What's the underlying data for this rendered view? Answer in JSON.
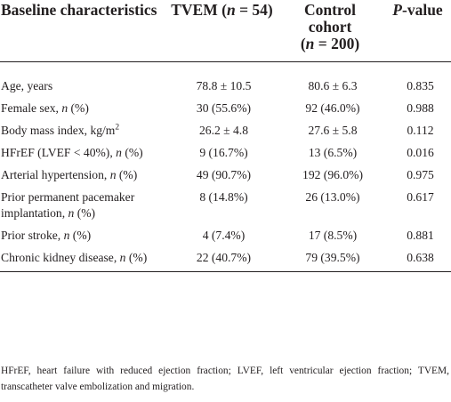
{
  "header": {
    "col1": "Baseline characteristics",
    "col2": "TVEM (n = 54)",
    "col3": "Control cohort (n = 200)",
    "col4": "P-value"
  },
  "rows": [
    {
      "label": "Age, years",
      "tvem": "78.8 ± 10.5",
      "control": "80.6 ± 6.3",
      "p": "0.835"
    },
    {
      "label": "Female sex, n (%)",
      "tvem": "30 (55.6%)",
      "control": "92 (46.0%)",
      "p": "0.988"
    },
    {
      "label": "Body mass index, kg/m2",
      "tvem": "26.2 ± 4.8",
      "control": "27.6 ± 5.8",
      "p": "0.112"
    },
    {
      "label": "HFrEF (LVEF < 40%), n (%)",
      "tvem": "9 (16.7%)",
      "control": "13 (6.5%)",
      "p": "0.016"
    },
    {
      "label": "Arterial hypertension, n (%)",
      "tvem": "49 (90.7%)",
      "control": "192 (96.0%)",
      "p": "0.975"
    },
    {
      "label": "Prior permanent pacemaker implantation, n (%)",
      "tvem": "8 (14.8%)",
      "control": "26 (13.0%)",
      "p": "0.617"
    },
    {
      "label": "Prior stroke, n (%)",
      "tvem": "4 (7.4%)",
      "control": "17 (8.5%)",
      "p": "0.881"
    },
    {
      "label": "Chronic kidney disease, n (%)",
      "tvem": "22 (40.7%)",
      "control": "79 (39.5%)",
      "p": "0.638"
    }
  ],
  "footnote": "HFrEF, heart failure with reduced ejection fraction; LVEF, left ventricular ejection fraction; TVEM, transcatheter valve embolization and migration."
}
